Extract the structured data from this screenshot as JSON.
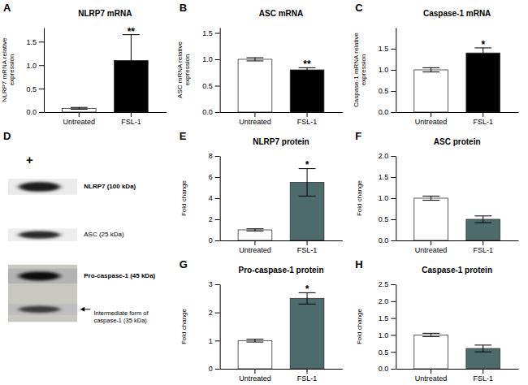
{
  "chart_data": [
    {
      "type": "bar",
      "title": "NLRP7 mRNA",
      "categories": [
        "Untreated",
        "FSL-1"
      ],
      "values": [
        0.08,
        1.1
      ],
      "errors": [
        0.02,
        0.55
      ],
      "colors": [
        "white",
        "black"
      ],
      "ylabel": "NLRP7 mRNA relative expression",
      "ylim": [
        0,
        1.8
      ],
      "yticks": [
        {
          "value": 0.0,
          "label": "0.0"
        },
        0.5,
        {
          "value": 1.0,
          "label": "1.0"
        },
        1.5
      ],
      "annotations": [
        {
          "text": "A"
        },
        {
          "text": "**",
          "x": "FSL-1"
        }
      ]
    },
    {
      "type": "bar",
      "title": "ASC mRNA",
      "categories": [
        "Untreated",
        "FSL-1"
      ],
      "values": [
        1.0,
        0.8
      ],
      "errors": [
        0.03,
        0.04
      ],
      "colors": [
        "white",
        "black"
      ],
      "ylabel": "ASC mRNA relative expression",
      "ylim": [
        0,
        1.6
      ],
      "yticks": [
        {
          "value": 0.0,
          "label": "0.0"
        },
        0.5,
        {
          "value": 1.0,
          "label": "1.0"
        },
        1.5
      ],
      "annotations": [
        {
          "text": "B"
        },
        {
          "text": "**",
          "x": "FSL-1"
        }
      ]
    },
    {
      "type": "bar",
      "title": "Caspase-1 mRNA",
      "categories": [
        "Untreated",
        "FSL-1"
      ],
      "values": [
        1.0,
        1.4
      ],
      "errors": [
        0.05,
        0.12
      ],
      "colors": [
        "white",
        "black"
      ],
      "ylabel": "Caspase-1 mRNA relative expression",
      "ylim": [
        0,
        2.0
      ],
      "yticks": [
        {
          "value": 0.0,
          "label": "0.0"
        },
        0.5,
        {
          "value": 1.0,
          "label": "1.0"
        },
        1.5
      ],
      "annotations": [
        {
          "text": "C"
        },
        {
          "text": "*",
          "x": "FSL-1"
        }
      ]
    },
    {
      "type": "blot",
      "annotations": [
        {
          "text": "D"
        },
        {
          "text": "+"
        },
        {
          "text": "NLRP7 (100 kDa)"
        },
        {
          "text": "ASC (25 kDa)"
        },
        {
          "text": "Pro-caspase-1 (45 kDa)"
        },
        {
          "text": "Intermediate form of\ncaspase-1 (35 kDa)"
        }
      ]
    },
    {
      "type": "bar",
      "title": "NLRP7 protein",
      "categories": [
        "Untreated",
        "FSL-1"
      ],
      "values": [
        1.0,
        5.5
      ],
      "errors": [
        0.1,
        1.3
      ],
      "colors": [
        "white",
        "#4d6b6b"
      ],
      "ylabel": "Fold change",
      "ylim": [
        0,
        8
      ],
      "yticks": [
        0,
        2,
        4,
        6,
        8
      ],
      "annotations": [
        {
          "text": "E"
        },
        {
          "text": "*",
          "x": "FSL-1"
        }
      ]
    },
    {
      "type": "bar",
      "title": "ASC protein",
      "categories": [
        "Untreated",
        "FSL-1"
      ],
      "values": [
        1.0,
        0.5
      ],
      "errors": [
        0.05,
        0.08
      ],
      "colors": [
        "white",
        "#4d6b6b"
      ],
      "ylabel": "Fold change",
      "ylim": [
        0,
        2.0
      ],
      "yticks": [
        {
          "value": 0.0,
          "label": "0.0"
        },
        0.5,
        {
          "value": 1.0,
          "label": "1.0"
        },
        1.5,
        {
          "value": 2.0,
          "label": "2.0"
        }
      ],
      "annotations": [
        {
          "text": "F"
        }
      ]
    },
    {
      "type": "bar",
      "title": "Pro-caspase-1 protein",
      "categories": [
        "Untreated",
        "FSL-1"
      ],
      "values": [
        1.0,
        2.5
      ],
      "errors": [
        0.05,
        0.2
      ],
      "colors": [
        "white",
        "#4d6b6b"
      ],
      "ylabel": "Fold change",
      "ylim": [
        0,
        3
      ],
      "yticks": [
        0,
        1,
        2,
        3
      ],
      "annotations": [
        {
          "text": "G"
        },
        {
          "text": "*",
          "x": "FSL-1"
        }
      ]
    },
    {
      "type": "bar",
      "title": "Caspase-1 protein",
      "categories": [
        "Untreated",
        "FSL-1"
      ],
      "values": [
        1.0,
        0.6
      ],
      "errors": [
        0.05,
        0.1
      ],
      "colors": [
        "white",
        "#4d6b6b"
      ],
      "ylabel": "Fold change",
      "ylim": [
        0,
        2.5
      ],
      "yticks": [
        {
          "value": 0.0,
          "label": "0.0"
        },
        0.5,
        {
          "value": 1.0,
          "label": "1.0"
        },
        1.5,
        {
          "value": 2.0,
          "label": "2.0"
        },
        2.5
      ],
      "annotations": [
        {
          "text": "H"
        }
      ]
    }
  ]
}
